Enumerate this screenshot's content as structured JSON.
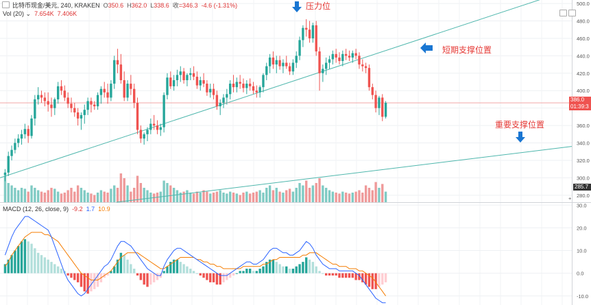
{
  "header": {
    "symbol": "比特币现金/美元",
    "interval": "240",
    "exchange": "KRAKEN",
    "o_label": "O",
    "o_value": "350.6",
    "h_label": "H",
    "h_value": "362.0",
    "l_label": "L",
    "l_value": "338.6",
    "c_label": "收",
    "c_value": "=346.3",
    "change": "-4.6 (-1.31%)"
  },
  "volume_legend": {
    "label": "Vol (20)",
    "value1": "7.654K",
    "value2": "7.406K"
  },
  "macd_legend": {
    "label": "MACD (12, 26, close, 9)",
    "hist": "-9.2",
    "macd": "1.7",
    "signal": "10.9"
  },
  "annotations": {
    "resistance": "压力位",
    "short_support": "短期支撑位置",
    "major_support": "重要支撑位置"
  },
  "price_axis": {
    "ticks": [
      "500.0",
      "480.0",
      "460.0",
      "440.0",
      "420.0",
      "400.0",
      "380.0",
      "360.0",
      "340.0",
      "320.0",
      "300.0",
      "280.0"
    ],
    "last_price": "386.0",
    "countdown": "01:39:3",
    "volume_marker": "285.7"
  },
  "macd_axis": {
    "ticks": [
      "30.0",
      "20.0",
      "10.0",
      "0.0",
      "-10.0"
    ]
  },
  "colors": {
    "up": "#26a69a",
    "down": "#ef5350",
    "macd": "#2962ff",
    "signal": "#f57c00",
    "trend": "#4db6ac"
  },
  "chart_data": {
    "type": "candlestick",
    "ylim": [
      272,
      504
    ],
    "macd_ylim": [
      -14,
      31
    ],
    "candles": [
      [
        303,
        310,
        296,
        306
      ],
      [
        306,
        330,
        302,
        325
      ],
      [
        325,
        337,
        320,
        332
      ],
      [
        332,
        345,
        328,
        340
      ],
      [
        340,
        350,
        335,
        345
      ],
      [
        345,
        355,
        338,
        350
      ],
      [
        350,
        362,
        345,
        356
      ],
      [
        356,
        360,
        340,
        348
      ],
      [
        348,
        372,
        345,
        368
      ],
      [
        368,
        395,
        360,
        390
      ],
      [
        390,
        404,
        384,
        395
      ],
      [
        395,
        400,
        386,
        392
      ],
      [
        392,
        398,
        382,
        388
      ],
      [
        388,
        398,
        376,
        384
      ],
      [
        384,
        392,
        370,
        380
      ],
      [
        380,
        392,
        372,
        390
      ],
      [
        390,
        410,
        385,
        405
      ],
      [
        405,
        412,
        395,
        400
      ],
      [
        400,
        406,
        388,
        392
      ],
      [
        392,
        398,
        380,
        385
      ],
      [
        385,
        392,
        375,
        380
      ],
      [
        380,
        386,
        370,
        375
      ],
      [
        375,
        380,
        360,
        368
      ],
      [
        368,
        375,
        355,
        372
      ],
      [
        372,
        384,
        362,
        378
      ],
      [
        378,
        392,
        372,
        388
      ],
      [
        388,
        392,
        375,
        384
      ],
      [
        384,
        388,
        378,
        382
      ],
      [
        382,
        398,
        378,
        395
      ],
      [
        395,
        405,
        385,
        402
      ],
      [
        402,
        410,
        392,
        398
      ],
      [
        398,
        408,
        385,
        392
      ],
      [
        392,
        412,
        388,
        408
      ],
      [
        408,
        440,
        402,
        435
      ],
      [
        435,
        448,
        420,
        430
      ],
      [
        430,
        442,
        408,
        412
      ],
      [
        412,
        422,
        388,
        392
      ],
      [
        392,
        412,
        388,
        408
      ],
      [
        408,
        418,
        395,
        402
      ],
      [
        402,
        408,
        380,
        386
      ],
      [
        386,
        392,
        350,
        355
      ],
      [
        355,
        360,
        340,
        345
      ],
      [
        345,
        352,
        338,
        350
      ],
      [
        350,
        358,
        342,
        355
      ],
      [
        355,
        368,
        350,
        362
      ],
      [
        362,
        372,
        355,
        360
      ],
      [
        360,
        366,
        350,
        355
      ],
      [
        355,
        362,
        348,
        358
      ],
      [
        358,
        398,
        352,
        395
      ],
      [
        395,
        420,
        390,
        415
      ],
      [
        415,
        422,
        402,
        405
      ],
      [
        405,
        418,
        400,
        412
      ],
      [
        412,
        424,
        405,
        418
      ],
      [
        418,
        428,
        410,
        422
      ],
      [
        422,
        426,
        408,
        412
      ],
      [
        412,
        420,
        405,
        418
      ],
      [
        418,
        426,
        412,
        420
      ],
      [
        420,
        428,
        412,
        416
      ],
      [
        416,
        422,
        402,
        406
      ],
      [
        406,
        416,
        400,
        412
      ],
      [
        412,
        420,
        404,
        408
      ],
      [
        408,
        412,
        394,
        398
      ],
      [
        398,
        408,
        392,
        402
      ],
      [
        402,
        408,
        390,
        395
      ],
      [
        395,
        400,
        378,
        382
      ],
      [
        382,
        390,
        372,
        386
      ],
      [
        386,
        396,
        380,
        392
      ],
      [
        392,
        402,
        384,
        396
      ],
      [
        396,
        412,
        390,
        408
      ],
      [
        408,
        418,
        398,
        404
      ],
      [
        404,
        415,
        398,
        410
      ],
      [
        410,
        418,
        402,
        408
      ],
      [
        408,
        414,
        398,
        403
      ],
      [
        403,
        412,
        396,
        408
      ],
      [
        408,
        414,
        400,
        405
      ],
      [
        405,
        410,
        396,
        400
      ],
      [
        400,
        406,
        392,
        398
      ],
      [
        398,
        406,
        392,
        404
      ],
      [
        404,
        420,
        398,
        418
      ],
      [
        418,
        432,
        412,
        428
      ],
      [
        428,
        442,
        420,
        438
      ],
      [
        438,
        445,
        425,
        430
      ],
      [
        430,
        440,
        420,
        435
      ],
      [
        435,
        440,
        424,
        428
      ],
      [
        428,
        436,
        420,
        432
      ],
      [
        432,
        440,
        425,
        428
      ],
      [
        428,
        432,
        418,
        422
      ],
      [
        422,
        436,
        418,
        432
      ],
      [
        432,
        445,
        426,
        440
      ],
      [
        440,
        462,
        435,
        458
      ],
      [
        458,
        475,
        450,
        472
      ],
      [
        472,
        482,
        462,
        470
      ],
      [
        470,
        480,
        455,
        460
      ],
      [
        460,
        478,
        455,
        475
      ],
      [
        475,
        480,
        440,
        445
      ],
      [
        445,
        450,
        400,
        420
      ],
      [
        420,
        430,
        410,
        425
      ],
      [
        425,
        438,
        418,
        432
      ],
      [
        432,
        440,
        425,
        436
      ],
      [
        436,
        446,
        430,
        442
      ],
      [
        442,
        448,
        432,
        438
      ],
      [
        438,
        444,
        430,
        434
      ],
      [
        434,
        446,
        428,
        442
      ],
      [
        442,
        448,
        435,
        440
      ],
      [
        440,
        446,
        434,
        438
      ],
      [
        438,
        446,
        432,
        443
      ],
      [
        443,
        448,
        436,
        440
      ],
      [
        440,
        444,
        425,
        430
      ],
      [
        430,
        436,
        422,
        428
      ],
      [
        428,
        432,
        420,
        426
      ],
      [
        426,
        430,
        400,
        404
      ],
      [
        404,
        408,
        390,
        395
      ],
      [
        395,
        400,
        375,
        380
      ],
      [
        380,
        394,
        372,
        392
      ],
      [
        392,
        396,
        365,
        370
      ],
      [
        370,
        388,
        368,
        386
      ]
    ],
    "volume": [
      0.55,
      0.4,
      0.35,
      0.3,
      0.25,
      0.3,
      0.28,
      0.22,
      0.35,
      0.3,
      0.25,
      0.22,
      0.2,
      0.25,
      0.3,
      0.28,
      0.22,
      0.18,
      0.2,
      0.25,
      0.3,
      0.22,
      0.35,
      0.3,
      0.25,
      0.2,
      0.18,
      0.15,
      0.2,
      0.25,
      0.22,
      0.2,
      0.28,
      0.35,
      0.3,
      0.6,
      0.5,
      0.35,
      0.22,
      0.3,
      0.55,
      0.4,
      0.3,
      0.25,
      0.2,
      0.18,
      0.2,
      0.22,
      0.45,
      0.4,
      0.35,
      0.3,
      0.25,
      0.2,
      0.22,
      0.25,
      0.2,
      0.18,
      0.22,
      0.2,
      0.25,
      0.22,
      0.18,
      0.2,
      0.22,
      0.25,
      0.2,
      0.18,
      0.22,
      0.2,
      0.18,
      0.15,
      0.2,
      0.22,
      0.18,
      0.2,
      0.22,
      0.25,
      0.2,
      0.3,
      0.35,
      0.25,
      0.3,
      0.22,
      0.2,
      0.25,
      0.28,
      0.22,
      0.3,
      0.4,
      0.35,
      0.45,
      0.3,
      0.35,
      0.4,
      0.5,
      0.35,
      0.3,
      0.25,
      0.22,
      0.2,
      0.18,
      0.22,
      0.2,
      0.18,
      0.2,
      0.22,
      0.25,
      0.2,
      0.35,
      0.3,
      0.25,
      0.42,
      0.3,
      0.38,
      0.22
    ],
    "macd_hist": [
      4,
      6,
      8,
      10,
      12,
      14,
      15,
      14,
      13,
      11,
      9,
      8,
      7,
      6,
      5,
      4,
      3,
      2,
      1,
      -1,
      -2,
      -3,
      -4,
      -6,
      -8,
      -9,
      -8,
      -7,
      -6,
      -4,
      -2,
      -1,
      1,
      3,
      6,
      9,
      8,
      6,
      4,
      2,
      -1,
      -3,
      -5,
      -6,
      -5,
      -4,
      -3,
      -2,
      1,
      3,
      5,
      6,
      6,
      5,
      4,
      3,
      2,
      1,
      0,
      -1,
      -2,
      -3,
      -4,
      -4,
      -5,
      -5,
      -4,
      -3,
      -2,
      -1,
      0,
      1,
      1,
      2,
      2,
      1,
      1,
      2,
      3,
      5,
      6,
      6,
      5,
      4,
      3,
      3,
      2,
      2,
      3,
      4,
      5,
      7,
      6,
      5,
      3,
      1,
      0,
      -1,
      -1,
      -1,
      -1,
      -2,
      -2,
      -2,
      -2,
      -2,
      -3,
      -3,
      -4,
      -5,
      -6,
      -7,
      -7,
      -6,
      -5,
      -4
    ],
    "macd_line": [
      8,
      12,
      16,
      19,
      21,
      23,
      25,
      25,
      24,
      23,
      22,
      21,
      20,
      19,
      16,
      12,
      8,
      4,
      0,
      -3,
      -5,
      -7,
      -9,
      -10,
      -9,
      -7,
      -5,
      -3,
      -1,
      1,
      3,
      4,
      6,
      9,
      12,
      14,
      14,
      13,
      12,
      10,
      8,
      6,
      4,
      2,
      1,
      0,
      -1,
      -1,
      3,
      6,
      8,
      10,
      11,
      11,
      10,
      9,
      8,
      7,
      6,
      5,
      4,
      3,
      2,
      1,
      0,
      -1,
      -1,
      -1,
      0,
      1,
      2,
      3,
      4,
      5,
      5,
      4,
      4,
      5,
      6,
      8,
      10,
      11,
      11,
      10,
      9,
      9,
      8,
      8,
      9,
      10,
      12,
      14,
      13,
      11,
      8,
      6,
      4,
      3,
      2,
      2,
      2,
      1,
      1,
      1,
      1,
      1,
      0,
      -1,
      -3,
      -5,
      -7,
      -9,
      -11,
      -12,
      -13,
      -13
    ],
    "signal_line": [
      3,
      5,
      8,
      10,
      12,
      14,
      16,
      17,
      18,
      18,
      18,
      18,
      17,
      17,
      16,
      15,
      14,
      12,
      10,
      8,
      6,
      4,
      2,
      0,
      -1,
      -2,
      -3,
      -3,
      -3,
      -2,
      -1,
      0,
      1,
      3,
      5,
      7,
      8,
      9,
      9,
      9,
      9,
      8,
      7,
      6,
      5,
      4,
      3,
      2,
      2,
      3,
      4,
      5,
      6,
      7,
      7,
      7,
      7,
      7,
      6,
      6,
      5,
      5,
      4,
      4,
      3,
      3,
      2,
      2,
      2,
      2,
      2,
      2,
      3,
      3,
      3,
      3,
      3,
      3,
      4,
      4,
      5,
      6,
      6,
      7,
      7,
      7,
      7,
      7,
      7,
      7,
      8,
      8,
      9,
      9,
      9,
      8,
      7,
      6,
      5,
      4,
      4,
      3,
      3,
      3,
      2,
      2,
      2,
      1,
      1,
      0,
      -1,
      -2,
      -4,
      -6,
      -8,
      -10
    ]
  }
}
